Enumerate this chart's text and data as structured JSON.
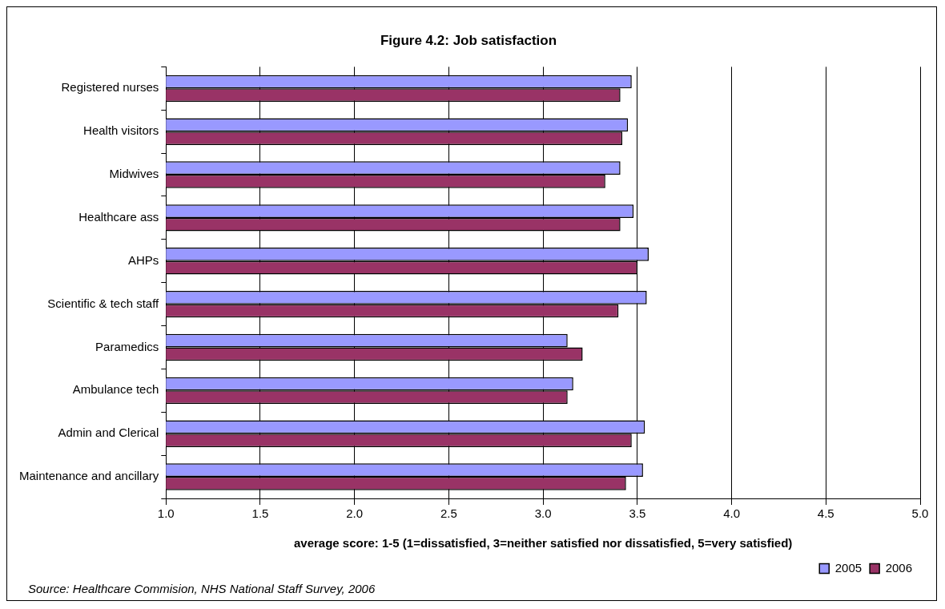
{
  "chart_data": {
    "type": "bar",
    "orientation": "horizontal",
    "title": "Figure 4.2: Job satisfaction",
    "xlabel": "average score: 1-5 (1=dissatisfied, 3=neither satisfied nor dissatisfied, 5=very satisfied)",
    "categories": [
      "Registered nurses",
      "Health visitors",
      "Midwives",
      "Healthcare ass",
      "AHPs",
      "Scientific & tech staff",
      "Paramedics",
      "Ambulance tech",
      "Admin and Clerical",
      "Maintenance and ancillary"
    ],
    "series": [
      {
        "name": "2005",
        "color": "#9999ff",
        "values": [
          3.47,
          3.45,
          3.41,
          3.48,
          3.56,
          3.55,
          3.13,
          3.16,
          3.54,
          3.53
        ]
      },
      {
        "name": "2006",
        "color": "#993366",
        "values": [
          3.41,
          3.42,
          3.33,
          3.41,
          3.5,
          3.4,
          3.21,
          3.13,
          3.47,
          3.44
        ]
      }
    ],
    "xlim": [
      1.0,
      5.0
    ],
    "xticks": [
      {
        "value": 1,
        "label": "1.0"
      },
      {
        "value": 1.5,
        "label": "1.5"
      },
      {
        "value": 2,
        "label": "2.0"
      },
      {
        "value": 2.5,
        "label": "2.5"
      },
      {
        "value": 3,
        "label": "3.0"
      },
      {
        "value": 3.5,
        "label": "3.5"
      },
      {
        "value": 4,
        "label": "4.0"
      },
      {
        "value": 4.5,
        "label": "4.5"
      },
      {
        "value": 5,
        "label": "5.0"
      }
    ],
    "grid": "x",
    "legend": "bottom right",
    "annotations": [
      "Source: Healthcare Commision, NHS National Staff Survey, 2006"
    ]
  }
}
